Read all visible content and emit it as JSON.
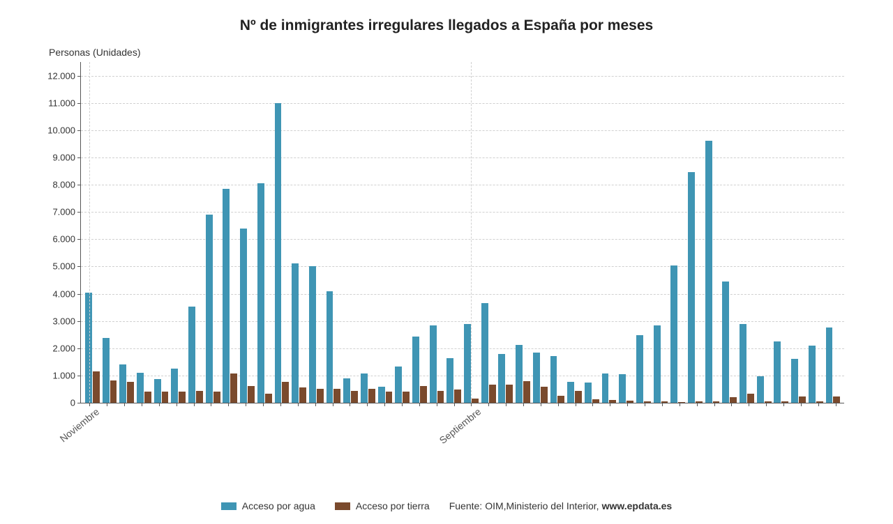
{
  "chart": {
    "type": "bar",
    "title": "Nº de inmigrantes irregulares llegados a España por meses",
    "title_fontsize": 21,
    "ylabel": "Personas (Unidades)",
    "ylabel_fontsize": 14,
    "tick_fontsize": 13,
    "xtick_fontsize": 14,
    "background_color": "#ffffff",
    "grid_color": "#d0d0d0",
    "axis_color": "#555555",
    "ylim": [
      0,
      12500
    ],
    "yticks": [
      0,
      1000,
      2000,
      3000,
      4000,
      5000,
      6000,
      7000,
      8000,
      9000,
      10000,
      11000,
      12000
    ],
    "ytick_labels": [
      "0",
      "1.000",
      "2.000",
      "3.000",
      "4.000",
      "5.000",
      "6.000",
      "7.000",
      "8.000",
      "9.000",
      "10.000",
      "11.000",
      "12.000"
    ],
    "series": [
      {
        "name": "Acceso por agua",
        "color": "#3f95b4"
      },
      {
        "name": "Acceso por tierra",
        "color": "#7a4a2d"
      }
    ],
    "vgrid_at": [
      0,
      22
    ],
    "xlabels": [
      {
        "at": 0,
        "text": "Noviembre"
      },
      {
        "at": 22,
        "text": "Septiembre"
      }
    ],
    "months": [
      {
        "agua": 4050,
        "tierra": 1150
      },
      {
        "agua": 2380,
        "tierra": 830
      },
      {
        "agua": 1400,
        "tierra": 760
      },
      {
        "agua": 1100,
        "tierra": 420
      },
      {
        "agua": 870,
        "tierra": 400
      },
      {
        "agua": 1250,
        "tierra": 420
      },
      {
        "agua": 3520,
        "tierra": 440
      },
      {
        "agua": 6900,
        "tierra": 400
      },
      {
        "agua": 7840,
        "tierra": 1070
      },
      {
        "agua": 6400,
        "tierra": 610
      },
      {
        "agua": 8050,
        "tierra": 320
      },
      {
        "agua": 11000,
        "tierra": 780
      },
      {
        "agua": 5120,
        "tierra": 560
      },
      {
        "agua": 5000,
        "tierra": 520
      },
      {
        "agua": 4100,
        "tierra": 500
      },
      {
        "agua": 900,
        "tierra": 440
      },
      {
        "agua": 1080,
        "tierra": 500
      },
      {
        "agua": 580,
        "tierra": 400
      },
      {
        "agua": 1320,
        "tierra": 400
      },
      {
        "agua": 2420,
        "tierra": 620
      },
      {
        "agua": 2850,
        "tierra": 440
      },
      {
        "agua": 1630,
        "tierra": 480
      },
      {
        "agua": 2900,
        "tierra": 150
      },
      {
        "agua": 3650,
        "tierra": 670
      },
      {
        "agua": 1790,
        "tierra": 660
      },
      {
        "agua": 2120,
        "tierra": 790
      },
      {
        "agua": 1850,
        "tierra": 590
      },
      {
        "agua": 1720,
        "tierra": 260
      },
      {
        "agua": 770,
        "tierra": 440
      },
      {
        "agua": 740,
        "tierra": 130
      },
      {
        "agua": 1080,
        "tierra": 90
      },
      {
        "agua": 1050,
        "tierra": 70
      },
      {
        "agua": 2480,
        "tierra": 60
      },
      {
        "agua": 2830,
        "tierra": 50
      },
      {
        "agua": 5040,
        "tierra": 30
      },
      {
        "agua": 8470,
        "tierra": 50
      },
      {
        "agua": 9600,
        "tierra": 60
      },
      {
        "agua": 4440,
        "tierra": 200
      },
      {
        "agua": 2880,
        "tierra": 330
      },
      {
        "agua": 980,
        "tierra": 50
      },
      {
        "agua": 2240,
        "tierra": 40
      },
      {
        "agua": 1610,
        "tierra": 240
      },
      {
        "agua": 2100,
        "tierra": 50
      },
      {
        "agua": 2760,
        "tierra": 240
      }
    ],
    "legend_fontsize": 14,
    "source_prefix": "Fuente: ",
    "source": "OIM,Ministerio del Interior, ",
    "source_site": "www.epdata.es"
  }
}
